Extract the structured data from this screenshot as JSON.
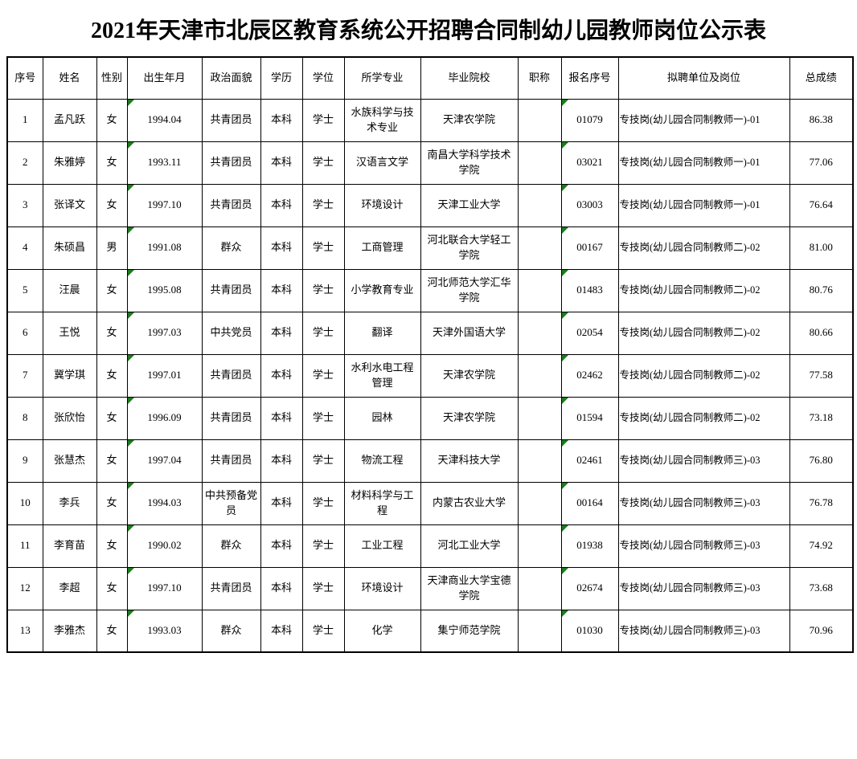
{
  "title": "2021年天津市北辰区教育系统公开招聘合同制幼儿园教师岗位公示表",
  "colors": {
    "marker_green": "#1e7b1e",
    "border": "#000000",
    "background": "#ffffff"
  },
  "table": {
    "column_keys": [
      "index",
      "name",
      "gender",
      "birth-date",
      "political-status",
      "education",
      "degree",
      "major",
      "school",
      "professional-title",
      "registration-no",
      "position",
      "total-score"
    ],
    "headers": [
      "序号",
      "姓名",
      "性别",
      "出生年月",
      "政治面貌",
      "学历",
      "学位",
      "所学专业",
      "毕业院校",
      "职称",
      "报名序号",
      "拟聘单位及岗位",
      "总成绩"
    ],
    "marker_columns": [
      3,
      10
    ],
    "rows": [
      [
        "1",
        "孟凡跃",
        "女",
        "1994.04",
        "共青团员",
        "本科",
        "学士",
        "水族科学与技术专业",
        "天津农学院",
        "",
        "01079",
        "专技岗(幼儿园合同制教师一)-01",
        "86.38"
      ],
      [
        "2",
        "朱雅婷",
        "女",
        "1993.11",
        "共青团员",
        "本科",
        "学士",
        "汉语言文学",
        "南昌大学科学技术学院",
        "",
        "03021",
        "专技岗(幼儿园合同制教师一)-01",
        "77.06"
      ],
      [
        "3",
        "张译文",
        "女",
        "1997.10",
        "共青团员",
        "本科",
        "学士",
        "环境设计",
        "天津工业大学",
        "",
        "03003",
        "专技岗(幼儿园合同制教师一)-01",
        "76.64"
      ],
      [
        "4",
        "朱硕昌",
        "男",
        "1991.08",
        "群众",
        "本科",
        "学士",
        "工商管理",
        "河北联合大学轻工学院",
        "",
        "00167",
        "专技岗(幼儿园合同制教师二)-02",
        "81.00"
      ],
      [
        "5",
        "汪晨",
        "女",
        "1995.08",
        "共青团员",
        "本科",
        "学士",
        "小学教育专业",
        "河北师范大学汇华学院",
        "",
        "01483",
        "专技岗(幼儿园合同制教师二)-02",
        "80.76"
      ],
      [
        "6",
        "王悦",
        "女",
        "1997.03",
        "中共党员",
        "本科",
        "学士",
        "翻译",
        "天津外国语大学",
        "",
        "02054",
        "专技岗(幼儿园合同制教师二)-02",
        "80.66"
      ],
      [
        "7",
        "冀学琪",
        "女",
        "1997.01",
        "共青团员",
        "本科",
        "学士",
        "水利水电工程管理",
        "天津农学院",
        "",
        "02462",
        "专技岗(幼儿园合同制教师二)-02",
        "77.58"
      ],
      [
        "8",
        "张欣怡",
        "女",
        "1996.09",
        "共青团员",
        "本科",
        "学士",
        "园林",
        "天津农学院",
        "",
        "01594",
        "专技岗(幼儿园合同制教师二)-02",
        "73.18"
      ],
      [
        "9",
        "张慧杰",
        "女",
        "1997.04",
        "共青团员",
        "本科",
        "学士",
        "物流工程",
        "天津科技大学",
        "",
        "02461",
        "专技岗(幼儿园合同制教师三)-03",
        "76.80"
      ],
      [
        "10",
        "李兵",
        "女",
        "1994.03",
        "中共预备党员",
        "本科",
        "学士",
        "材料科学与工程",
        "内蒙古农业大学",
        "",
        "00164",
        "专技岗(幼儿园合同制教师三)-03",
        "76.78"
      ],
      [
        "11",
        "李育苗",
        "女",
        "1990.02",
        "群众",
        "本科",
        "学士",
        "工业工程",
        "河北工业大学",
        "",
        "01938",
        "专技岗(幼儿园合同制教师三)-03",
        "74.92"
      ],
      [
        "12",
        "李超",
        "女",
        "1997.10",
        "共青团员",
        "本科",
        "学士",
        "环境设计",
        "天津商业大学宝德学院",
        "",
        "02674",
        "专技岗(幼儿园合同制教师三)-03",
        "73.68"
      ],
      [
        "13",
        "李雅杰",
        "女",
        "1993.03",
        "群众",
        "本科",
        "学士",
        "化学",
        "集宁师范学院",
        "",
        "01030",
        "专技岗(幼儿园合同制教师三)-03",
        "70.96"
      ]
    ]
  }
}
